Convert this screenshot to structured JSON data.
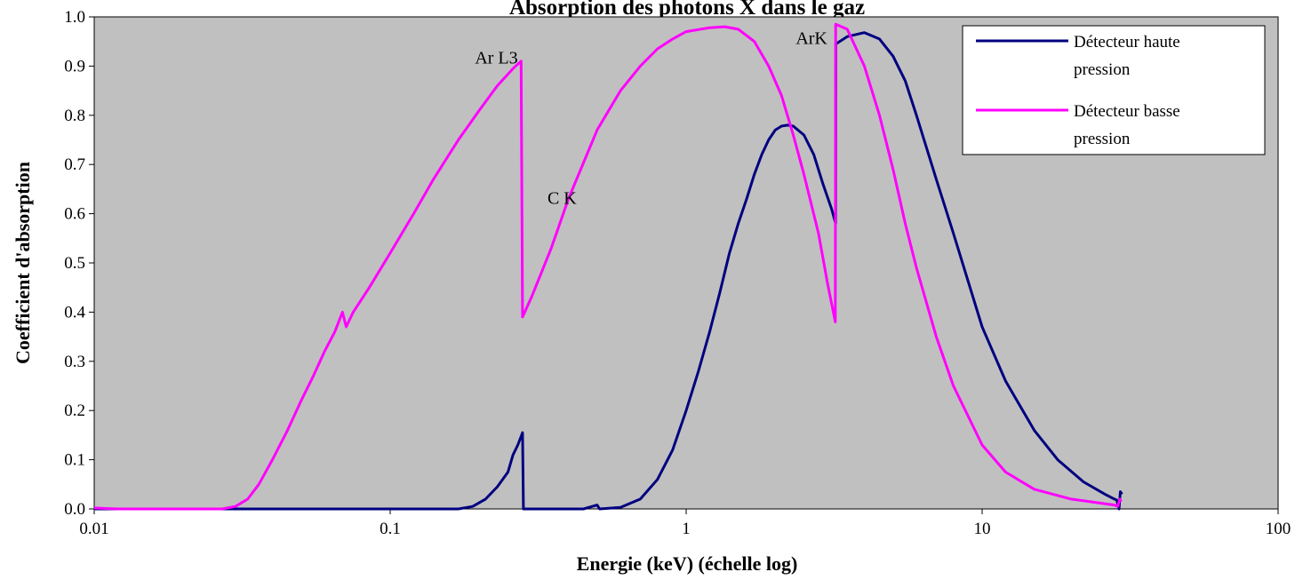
{
  "chart_data": {
    "type": "line",
    "title": "Absorption des photons X dans le gaz",
    "xlabel": "Energie (keV) (échelle log)",
    "ylabel": "Coefficient d'absorption",
    "xscale": "log",
    "xlim": [
      0.01,
      100
    ],
    "ylim": [
      0,
      1.0
    ],
    "x_ticks": [
      {
        "value": 0.01,
        "label": "0.01"
      },
      {
        "value": 0.1,
        "label": "0.1"
      },
      {
        "value": 1,
        "label": "1"
      },
      {
        "value": 10,
        "label": "10"
      },
      {
        "value": 100,
        "label": "100"
      }
    ],
    "y_ticks": [
      {
        "value": 0.0,
        "label": "0.0"
      },
      {
        "value": 0.1,
        "label": "0.1"
      },
      {
        "value": 0.2,
        "label": "0.2"
      },
      {
        "value": 0.3,
        "label": "0.3"
      },
      {
        "value": 0.4,
        "label": "0.4"
      },
      {
        "value": 0.5,
        "label": "0.5"
      },
      {
        "value": 0.6,
        "label": "0.6"
      },
      {
        "value": 0.7,
        "label": "0.7"
      },
      {
        "value": 0.8,
        "label": "0.8"
      },
      {
        "value": 0.9,
        "label": "0.9"
      },
      {
        "value": 1.0,
        "label": "1.0"
      }
    ],
    "grid": false,
    "plot_background": "#c0c0c0",
    "legend_placement": "top-right",
    "series": [
      {
        "name_lines": [
          "Détecteur haute",
          "pression"
        ],
        "color": "#000080",
        "points": [
          [
            0.01,
            0.0
          ],
          [
            0.1,
            0.0
          ],
          [
            0.17,
            0.0
          ],
          [
            0.19,
            0.005
          ],
          [
            0.21,
            0.02
          ],
          [
            0.23,
            0.045
          ],
          [
            0.25,
            0.075
          ],
          [
            0.26,
            0.11
          ],
          [
            0.27,
            0.13
          ],
          [
            0.28,
            0.155
          ],
          [
            0.282,
            0.0
          ],
          [
            0.45,
            0.0
          ],
          [
            0.5,
            0.008
          ],
          [
            0.51,
            0.0
          ],
          [
            0.6,
            0.003
          ],
          [
            0.7,
            0.02
          ],
          [
            0.8,
            0.06
          ],
          [
            0.9,
            0.12
          ],
          [
            1.0,
            0.2
          ],
          [
            1.1,
            0.28
          ],
          [
            1.2,
            0.36
          ],
          [
            1.3,
            0.44
          ],
          [
            1.4,
            0.52
          ],
          [
            1.5,
            0.58
          ],
          [
            1.6,
            0.63
          ],
          [
            1.7,
            0.68
          ],
          [
            1.8,
            0.72
          ],
          [
            1.9,
            0.75
          ],
          [
            2.0,
            0.77
          ],
          [
            2.1,
            0.778
          ],
          [
            2.2,
            0.78
          ],
          [
            2.3,
            0.778
          ],
          [
            2.5,
            0.76
          ],
          [
            2.7,
            0.72
          ],
          [
            2.9,
            0.66
          ],
          [
            3.1,
            0.61
          ],
          [
            3.2,
            0.58
          ],
          [
            3.205,
            0.945
          ],
          [
            3.5,
            0.96
          ],
          [
            4.0,
            0.968
          ],
          [
            4.5,
            0.955
          ],
          [
            5.0,
            0.92
          ],
          [
            5.5,
            0.87
          ],
          [
            6.0,
            0.8
          ],
          [
            7.0,
            0.67
          ],
          [
            8.0,
            0.56
          ],
          [
            10.0,
            0.37
          ],
          [
            12.0,
            0.26
          ],
          [
            15.0,
            0.16
          ],
          [
            18.0,
            0.1
          ],
          [
            22.0,
            0.055
          ],
          [
            26.0,
            0.03
          ],
          [
            28.0,
            0.02
          ],
          [
            28.5,
            0.018
          ],
          [
            29.0,
            0.0
          ],
          [
            29.3,
            0.035
          ],
          [
            29.7,
            0.03
          ]
        ]
      },
      {
        "name_lines": [
          "Détecteur basse",
          "pression"
        ],
        "color": "#ff00ff",
        "points": [
          [
            0.01,
            0.002
          ],
          [
            0.012,
            0.0
          ],
          [
            0.027,
            0.0
          ],
          [
            0.03,
            0.005
          ],
          [
            0.033,
            0.02
          ],
          [
            0.036,
            0.05
          ],
          [
            0.04,
            0.1
          ],
          [
            0.045,
            0.16
          ],
          [
            0.05,
            0.22
          ],
          [
            0.055,
            0.27
          ],
          [
            0.06,
            0.32
          ],
          [
            0.065,
            0.36
          ],
          [
            0.069,
            0.4
          ],
          [
            0.071,
            0.37
          ],
          [
            0.075,
            0.4
          ],
          [
            0.085,
            0.45
          ],
          [
            0.1,
            0.52
          ],
          [
            0.12,
            0.6
          ],
          [
            0.14,
            0.67
          ],
          [
            0.17,
            0.75
          ],
          [
            0.2,
            0.81
          ],
          [
            0.23,
            0.86
          ],
          [
            0.26,
            0.895
          ],
          [
            0.277,
            0.91
          ],
          [
            0.28,
            0.39
          ],
          [
            0.3,
            0.43
          ],
          [
            0.35,
            0.53
          ],
          [
            0.4,
            0.63
          ],
          [
            0.5,
            0.77
          ],
          [
            0.6,
            0.85
          ],
          [
            0.7,
            0.9
          ],
          [
            0.8,
            0.935
          ],
          [
            0.9,
            0.955
          ],
          [
            1.0,
            0.97
          ],
          [
            1.2,
            0.978
          ],
          [
            1.35,
            0.98
          ],
          [
            1.5,
            0.975
          ],
          [
            1.7,
            0.95
          ],
          [
            1.9,
            0.9
          ],
          [
            2.1,
            0.84
          ],
          [
            2.3,
            0.76
          ],
          [
            2.5,
            0.68
          ],
          [
            2.8,
            0.56
          ],
          [
            3.0,
            0.46
          ],
          [
            3.19,
            0.38
          ],
          [
            3.2,
            0.985
          ],
          [
            3.5,
            0.975
          ],
          [
            4.0,
            0.9
          ],
          [
            4.5,
            0.8
          ],
          [
            5.0,
            0.69
          ],
          [
            5.5,
            0.58
          ],
          [
            6.0,
            0.49
          ],
          [
            7.0,
            0.35
          ],
          [
            8.0,
            0.25
          ],
          [
            10.0,
            0.13
          ],
          [
            12.0,
            0.075
          ],
          [
            15.0,
            0.04
          ],
          [
            20.0,
            0.02
          ],
          [
            25.0,
            0.012
          ],
          [
            28.0,
            0.008
          ],
          [
            28.7,
            0.005
          ],
          [
            29.2,
            0.02
          ],
          [
            29.5,
            0.015
          ]
        ]
      }
    ],
    "annotations": [
      {
        "text": "Ar L3",
        "x": 0.27,
        "y": 0.905,
        "anchor": "end"
      },
      {
        "text": "C K",
        "x": 0.34,
        "y": 0.62,
        "anchor": "start"
      },
      {
        "text": "ArK",
        "x": 3.0,
        "y": 0.945,
        "anchor": "end"
      }
    ]
  }
}
